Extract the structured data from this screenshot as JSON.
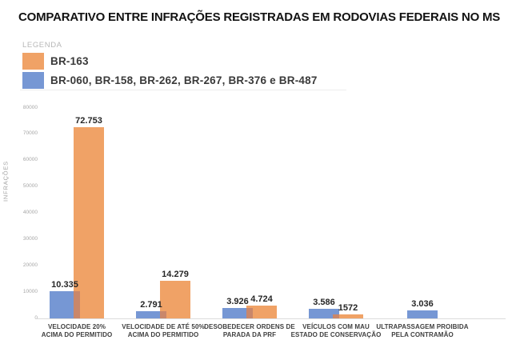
{
  "page": {
    "title": "COMPARATIVO ENTRE INFRAÇÕES REGISTRADAS EM RODOVIAS FEDERAIS NO MS"
  },
  "legend": {
    "heading": "LEGENDA",
    "items": [
      {
        "label": "BR-163",
        "color": "#F0A266"
      },
      {
        "label": "BR-060, BR-158, BR-262, BR-267, BR-376 e BR-487",
        "color": "#7697D4"
      }
    ]
  },
  "chart_data": {
    "type": "bar",
    "title": "COMPARATIVO ENTRE INFRAÇÕES REGISTRADAS EM RODOVIAS FEDERAIS NO MS",
    "xlabel": "",
    "ylabel": "INFRAÇÕES",
    "ylim": [
      0,
      80000
    ],
    "yticks": [
      0,
      10000,
      20000,
      30000,
      40000,
      50000,
      60000,
      70000,
      80000
    ],
    "ytick_labels": [
      "0",
      "10000",
      "20000",
      "30000",
      "40000",
      "50000",
      "60000",
      "70000",
      "80000"
    ],
    "grid": false,
    "legend_position": "top-left",
    "categories": [
      "VELOCIDADE 20%\nACIMA DO PERMITIDO",
      "VELOCIDADE DE ATÉ 50%\nACIMA DO PERMITIDO",
      "DESOBEDECER ORDENS DE\nPARADA DA PRF",
      "VEÍCULOS COM MAU\nESTADO DE CONSERVAÇÃO",
      "ULTRAPASSAGEM PROIBIDA\nPELA CONTRAMÃO"
    ],
    "series": [
      {
        "name": "BR-163",
        "color": "#F0A266",
        "values": [
          72753,
          14279,
          4724,
          1572,
          null
        ],
        "value_labels": [
          "72.753",
          "14.279",
          "4.724",
          "1572",
          ""
        ]
      },
      {
        "name": "BR-060, BR-158, BR-262, BR-267, BR-376 e BR-487",
        "color": "#7697D4",
        "values": [
          10335,
          2791,
          3926,
          3586,
          3036
        ],
        "value_labels": [
          "10.335",
          "2.791",
          "3.926",
          "3.586",
          "3.036"
        ]
      }
    ],
    "overlap_color": "#C9876A",
    "axis_color": "#DCDCDC"
  }
}
